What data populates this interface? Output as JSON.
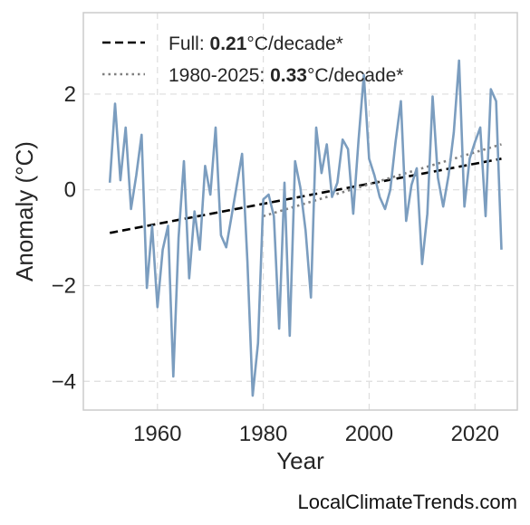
{
  "chart_data": {
    "type": "line",
    "title": "",
    "xlabel": "Year",
    "ylabel": "Anomaly (°C)",
    "xlim": [
      1946,
      2028
    ],
    "ylim": [
      -4.6,
      3.7
    ],
    "xticks": [
      1960,
      1980,
      2000,
      2020
    ],
    "yticks": [
      -4,
      -2,
      0,
      2
    ],
    "ytick_labels": [
      "−4",
      "−2",
      "0",
      "2"
    ],
    "grid": true,
    "legend_position": "top-left",
    "colors": {
      "series": "#7b9dbf",
      "trend_full": "#000000",
      "trend_recent": "#808080",
      "axes_frame": "#cccccc",
      "grid": "#dddddd"
    },
    "series": [
      {
        "x": [
          1951,
          1952,
          1953,
          1954,
          1955,
          1956,
          1957,
          1958,
          1959,
          1960,
          1961,
          1962,
          1963,
          1964,
          1965,
          1966,
          1967,
          1968,
          1969,
          1970,
          1971,
          1972,
          1973,
          1974,
          1975,
          1976,
          1977,
          1978,
          1979,
          1980,
          1981,
          1982,
          1983,
          1984,
          1985,
          1986,
          1987,
          1988,
          1989,
          1990,
          1991,
          1992,
          1993,
          1994,
          1995,
          1996,
          1997,
          1998,
          1999,
          2000,
          2001,
          2002,
          2003,
          2004,
          2005,
          2006,
          2007,
          2008,
          2009,
          2010,
          2011,
          2012,
          2013,
          2014,
          2015,
          2016,
          2017,
          2018,
          2019,
          2020,
          2021,
          2022,
          2023,
          2024,
          2025
        ],
        "values": [
          0.15,
          1.8,
          0.2,
          1.3,
          -0.4,
          0.3,
          1.15,
          -2.05,
          -0.75,
          -2.45,
          -1.25,
          -0.75,
          -3.9,
          -1.0,
          0.6,
          -1.85,
          -0.45,
          -1.25,
          0.5,
          -0.1,
          1.3,
          -0.95,
          -1.2,
          -0.55,
          0.1,
          0.75,
          -1.5,
          -4.3,
          -3.2,
          -0.2,
          -0.1,
          -0.55,
          -2.9,
          0.15,
          -3.05,
          0.6,
          0.05,
          -0.85,
          -2.25,
          1.3,
          0.35,
          0.95,
          -0.15,
          0.15,
          1.05,
          0.85,
          -0.5,
          1.05,
          2.4,
          0.65,
          0.3,
          -0.15,
          -0.4,
          0.0,
          1.0,
          1.85,
          -0.65,
          0.1,
          0.45,
          -1.55,
          -0.5,
          1.95,
          0.25,
          -0.35,
          0.3,
          1.2,
          2.7,
          -0.35,
          0.65,
          1.0,
          1.3,
          -0.55,
          2.1,
          1.85,
          -1.25
        ]
      }
    ],
    "trend_lines": [
      {
        "x": [
          1951,
          2025
        ],
        "values": [
          -0.9,
          0.65
        ]
      },
      {
        "x": [
          1980,
          2025
        ],
        "values": [
          -0.55,
          0.95
        ]
      }
    ],
    "legend": [
      {
        "prefix": "Full: ",
        "value": "0.21",
        "suffix": "°C/decade*",
        "style": "dashed"
      },
      {
        "prefix": "1980-2025: ",
        "value": "0.33",
        "suffix": "°C/decade*",
        "style": "dotted"
      }
    ]
  },
  "watermark": "LocalClimateTrends.com"
}
